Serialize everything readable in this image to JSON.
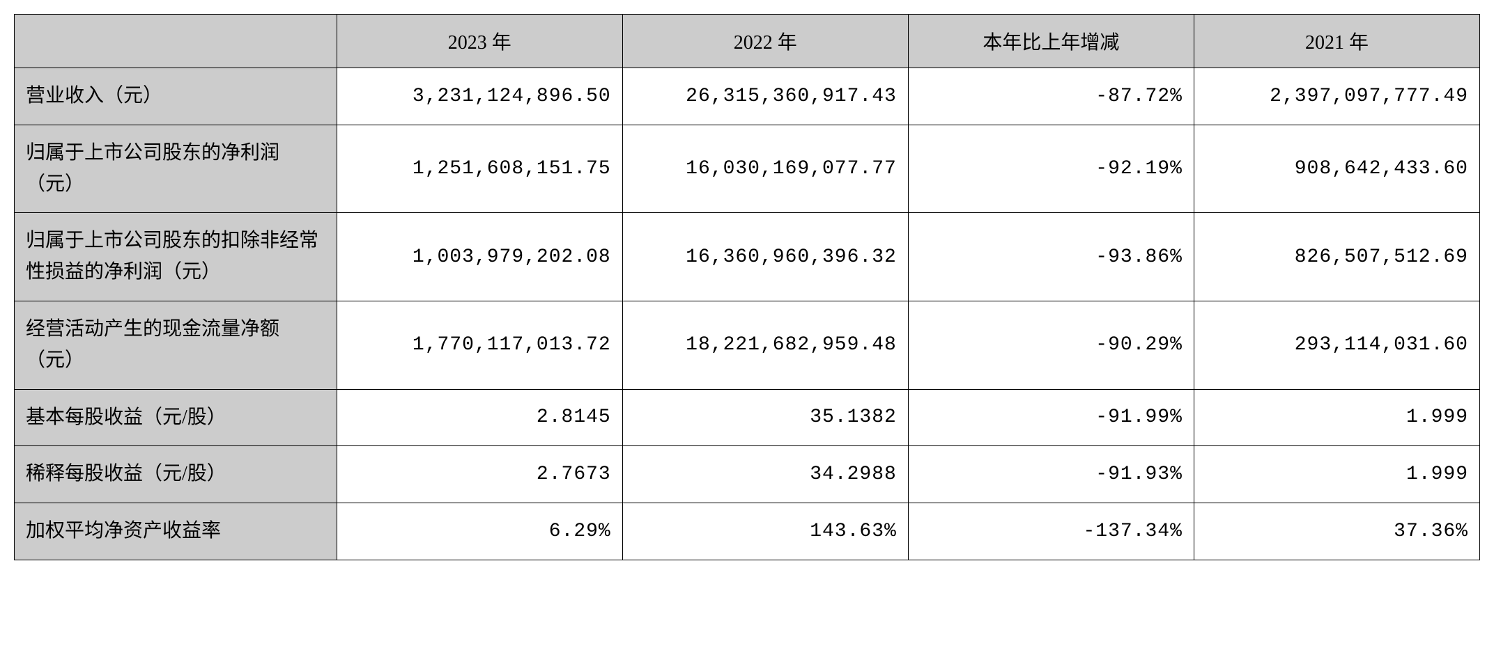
{
  "table": {
    "columns": [
      {
        "label": "",
        "width": "22%"
      },
      {
        "label": "2023 年",
        "width": "19.5%"
      },
      {
        "label": "2022 年",
        "width": "19.5%"
      },
      {
        "label": "本年比上年增减",
        "width": "19.5%"
      },
      {
        "label": "2021 年",
        "width": "19.5%"
      }
    ],
    "rows": [
      {
        "label": "营业收入（元）",
        "y2023": "3,231,124,896.50",
        "y2022": "26,315,360,917.43",
        "change": "-87.72%",
        "y2021": "2,397,097,777.49"
      },
      {
        "label": "归属于上市公司股东的净利润（元）",
        "y2023": "1,251,608,151.75",
        "y2022": "16,030,169,077.77",
        "change": "-92.19%",
        "y2021": "908,642,433.60"
      },
      {
        "label": "归属于上市公司股东的扣除非经常性损益的净利润（元）",
        "y2023": "1,003,979,202.08",
        "y2022": "16,360,960,396.32",
        "change": "-93.86%",
        "y2021": "826,507,512.69"
      },
      {
        "label": "经营活动产生的现金流量净额（元）",
        "y2023": "1,770,117,013.72",
        "y2022": "18,221,682,959.48",
        "change": "-90.29%",
        "y2021": "293,114,031.60"
      },
      {
        "label": "基本每股收益（元/股）",
        "y2023": "2.8145",
        "y2022": "35.1382",
        "change": "-91.99%",
        "y2021": "1.999"
      },
      {
        "label": "稀释每股收益（元/股）",
        "y2023": "2.7673",
        "y2022": "34.2988",
        "change": "-91.93%",
        "y2021": "1.999"
      },
      {
        "label": "加权平均净资产收益率",
        "y2023": "6.29%",
        "y2022": "143.63%",
        "change": "-137.34%",
        "y2021": "37.36%"
      }
    ],
    "header_bg_color": "#cccccc",
    "cell_bg_color": "#ffffff",
    "border_color": "#000000",
    "text_color": "#000000",
    "font_size": 28
  }
}
